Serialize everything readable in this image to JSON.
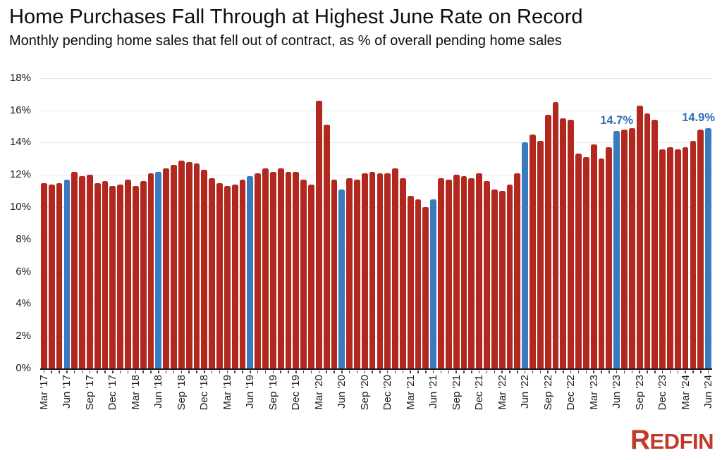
{
  "header": {
    "title": "Home Purchases Fall Through at Highest June Rate on Record",
    "subtitle": "Monthly pending home sales that fell out of contract, as % of overall pending home sales"
  },
  "chart_data": {
    "type": "bar",
    "title": "Home Purchases Fall Through at Highest June Rate on Record",
    "subtitle": "Monthly pending home sales that fell out of contract, as % of overall pending home sales",
    "ylabel": "",
    "xlabel": "",
    "ylim": [
      0,
      18
    ],
    "ytick_step": 2,
    "ytick_labels": [
      "0%",
      "2%",
      "4%",
      "6%",
      "8%",
      "10%",
      "12%",
      "14%",
      "16%",
      "18%"
    ],
    "grid": "horizontal",
    "x_tick_every": 3,
    "categories": [
      "Mar '17",
      "Apr '17",
      "May '17",
      "Jun '17",
      "Jul '17",
      "Aug '17",
      "Sep '17",
      "Oct '17",
      "Nov '17",
      "Dec '17",
      "Jan '18",
      "Feb '18",
      "Mar '18",
      "Apr '18",
      "May '18",
      "Jun '18",
      "Jul '18",
      "Aug '18",
      "Sep '18",
      "Oct '18",
      "Nov '18",
      "Dec '18",
      "Jan '19",
      "Feb '19",
      "Mar '19",
      "Apr '19",
      "May '19",
      "Jun '19",
      "Jul '19",
      "Aug '19",
      "Sep '19",
      "Oct '19",
      "Nov '19",
      "Dec '19",
      "Jan '20",
      "Feb '20",
      "Mar '20",
      "Apr '20",
      "May '20",
      "Jun '20",
      "Jul '20",
      "Aug '20",
      "Sep '20",
      "Oct '20",
      "Nov '20",
      "Dec '20",
      "Jan '21",
      "Feb '21",
      "Mar '21",
      "Apr '21",
      "May '21",
      "Jun '21",
      "Jul '21",
      "Aug '21",
      "Sep '21",
      "Oct '21",
      "Nov '21",
      "Dec '21",
      "Jan '22",
      "Feb '22",
      "Mar '22",
      "Apr '22",
      "May '22",
      "Jun '22",
      "Jul '22",
      "Aug '22",
      "Sep '22",
      "Oct '22",
      "Nov '22",
      "Dec '22",
      "Jan '23",
      "Feb '23",
      "Mar '23",
      "Apr '23",
      "May '23",
      "Jun '23",
      "Jul '23",
      "Aug '23",
      "Sep '23",
      "Oct '23",
      "Nov '23",
      "Dec '23",
      "Jan '24",
      "Feb '24",
      "Mar '24",
      "Apr '24",
      "May '24",
      "Jun '24"
    ],
    "values": [
      11.5,
      11.4,
      11.5,
      11.7,
      12.2,
      11.9,
      12.0,
      11.5,
      11.6,
      11.3,
      11.4,
      11.7,
      11.3,
      11.6,
      12.1,
      12.2,
      12.4,
      12.6,
      12.9,
      12.8,
      12.7,
      12.3,
      11.8,
      11.5,
      11.3,
      11.4,
      11.7,
      11.9,
      12.1,
      12.4,
      12.2,
      12.4,
      12.2,
      12.2,
      11.7,
      11.4,
      16.6,
      15.1,
      11.7,
      11.1,
      11.8,
      11.7,
      12.1,
      12.2,
      12.1,
      12.1,
      12.4,
      11.8,
      10.7,
      10.5,
      10.0,
      10.5,
      11.8,
      11.7,
      12.0,
      11.9,
      11.8,
      12.1,
      11.6,
      11.1,
      11.0,
      11.4,
      12.1,
      14.0,
      14.5,
      14.1,
      15.7,
      16.5,
      15.5,
      15.4,
      13.3,
      13.1,
      13.9,
      13.0,
      13.7,
      14.7,
      14.8,
      14.9,
      16.3,
      15.8,
      15.4,
      13.6,
      13.7,
      13.6,
      13.7,
      14.1,
      14.8,
      14.9
    ],
    "highlight_indices": [
      3,
      15,
      27,
      39,
      51,
      63,
      75,
      87
    ],
    "highlight_meaning": "June bars shown in blue",
    "annotations": [
      {
        "bar_index": 75,
        "label": "14.7%"
      },
      {
        "bar_index": 87,
        "label": "14.9%"
      }
    ],
    "colors": {
      "bar": "#b2281f",
      "highlight_bar": "#3a7abf",
      "annotation_text": "#2d6fb3",
      "gridline": "#e7e7e7",
      "axis": "#1a1a1a",
      "tick": "#444444",
      "label_text": "#1a1a1a"
    }
  },
  "branding": {
    "logo_first_letter": "R",
    "logo_rest": "EDFIN",
    "logo_color": "#c03a2b"
  }
}
